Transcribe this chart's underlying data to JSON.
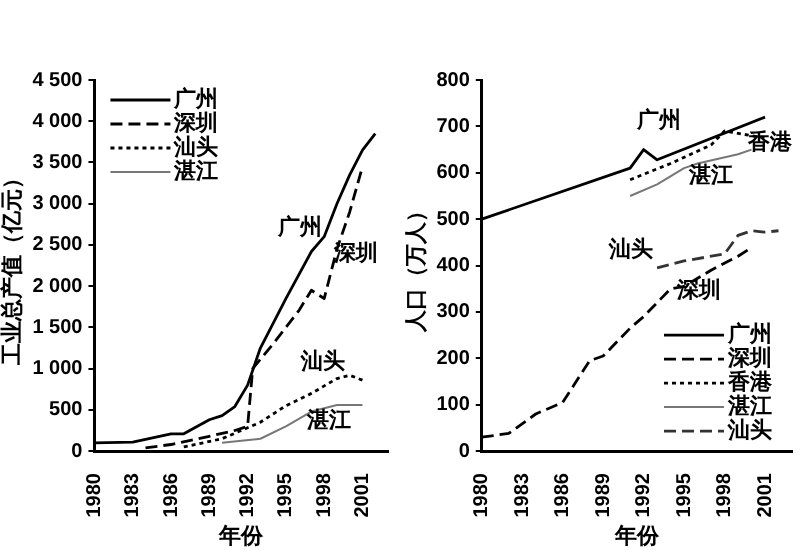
{
  "chart_data": [
    {
      "type": "line",
      "xlabel": "年份",
      "ylabel": "工业总产值（亿元）",
      "xlim": [
        1980,
        2003
      ],
      "xticks": [
        1980,
        1983,
        1986,
        1989,
        1992,
        1995,
        1998,
        2001
      ],
      "ylim": [
        0,
        4500
      ],
      "yticks": [
        0,
        {
          "value": 500,
          "label": "500"
        },
        {
          "value": 1000,
          "label": "1 000"
        },
        {
          "value": 1500,
          "label": "1 500"
        },
        {
          "value": 2000,
          "label": "2 000"
        },
        {
          "value": 2500,
          "label": "2 500"
        },
        {
          "value": 3000,
          "label": "3 000"
        },
        {
          "value": 3500,
          "label": "3 500"
        },
        {
          "value": 4000,
          "label": "4 000"
        },
        {
          "value": 4500,
          "label": "4 500"
        }
      ],
      "legend": "top left",
      "grid": false,
      "marker": "none",
      "series": [
        {
          "name": "广州",
          "color": "#000000",
          "line_style": "solid",
          "x": [
            1980,
            1983,
            1986,
            1987,
            1989,
            1990,
            1991,
            1992,
            1993,
            1995,
            1997,
            1998,
            1999,
            2000,
            2001,
            2002
          ],
          "values": [
            100,
            110,
            210,
            210,
            380,
            430,
            540,
            800,
            1250,
            1850,
            2420,
            2600,
            3000,
            3350,
            3650,
            3850
          ]
        },
        {
          "name": "深圳",
          "color": "#000000",
          "line_style": "dashed",
          "x": [
            1984,
            1986,
            1989,
            1991,
            1992,
            1992.4,
            1994,
            1996,
            1997,
            1998,
            1999,
            2000,
            2001
          ],
          "values": [
            40,
            80,
            180,
            250,
            300,
            1000,
            1300,
            1700,
            1950,
            1850,
            2450,
            2900,
            3450
          ]
        },
        {
          "name": "汕头",
          "color": "#000000",
          "line_style": "dotted",
          "x": [
            1987,
            1990,
            1993,
            1995,
            1997,
            1999,
            2000,
            2001
          ],
          "values": [
            50,
            150,
            350,
            550,
            700,
            880,
            920,
            860
          ]
        },
        {
          "name": "湛江",
          "color": "#777777",
          "line_style": "solid",
          "x": [
            1990,
            1993,
            1995,
            1997,
            1999,
            2001
          ],
          "values": [
            100,
            150,
            300,
            480,
            560,
            560
          ]
        }
      ],
      "annotations": [
        "广州",
        "深圳",
        "汕头",
        "湛江"
      ]
    },
    {
      "type": "line",
      "xlabel": "年份",
      "ylabel": "人口（万人）",
      "xlim": [
        1980,
        2003
      ],
      "xticks": [
        1980,
        1983,
        1986,
        1989,
        1992,
        1995,
        1998,
        2001
      ],
      "ylim": [
        0,
        800
      ],
      "yticks": [
        0,
        100,
        200,
        300,
        400,
        500,
        600,
        700,
        800
      ],
      "legend": "bottom right",
      "grid": false,
      "marker": "none",
      "series": [
        {
          "name": "广州",
          "color": "#000000",
          "line_style": "solid",
          "x": [
            1980,
            1991,
            1992,
            1993,
            2001
          ],
          "values": [
            500,
            610,
            650,
            628,
            720
          ]
        },
        {
          "name": "深圳",
          "color": "#000000",
          "line_style": "dashed",
          "x": [
            1980,
            1982,
            1984,
            1986,
            1988,
            1989,
            1991,
            1992,
            1994,
            1995,
            1997,
            1999,
            1999.8
          ],
          "values": [
            30,
            38,
            80,
            105,
            195,
            205,
            265,
            290,
            350,
            355,
            390,
            420,
            435
          ]
        },
        {
          "name": "香港",
          "color": "#000000",
          "line_style": "dotted",
          "x": [
            1991,
            1994,
            1997,
            1998,
            2001
          ],
          "values": [
            585,
            620,
            660,
            690,
            675
          ]
        },
        {
          "name": "湛江",
          "color": "#777777",
          "line_style": "solid",
          "x": [
            1991,
            1993,
            1995,
            1996,
            1999,
            2000
          ],
          "values": [
            550,
            575,
            610,
            620,
            640,
            650
          ]
        },
        {
          "name": "汕头",
          "color": "#333333",
          "line_style": "dashed",
          "x": [
            1993,
            1995,
            1998,
            1999,
            2000,
            2001,
            2002
          ],
          "values": [
            395,
            410,
            425,
            465,
            475,
            472,
            475
          ]
        }
      ],
      "annotations": [
        "广州",
        "香港",
        "湛江",
        "汕头",
        "深圳"
      ]
    }
  ]
}
